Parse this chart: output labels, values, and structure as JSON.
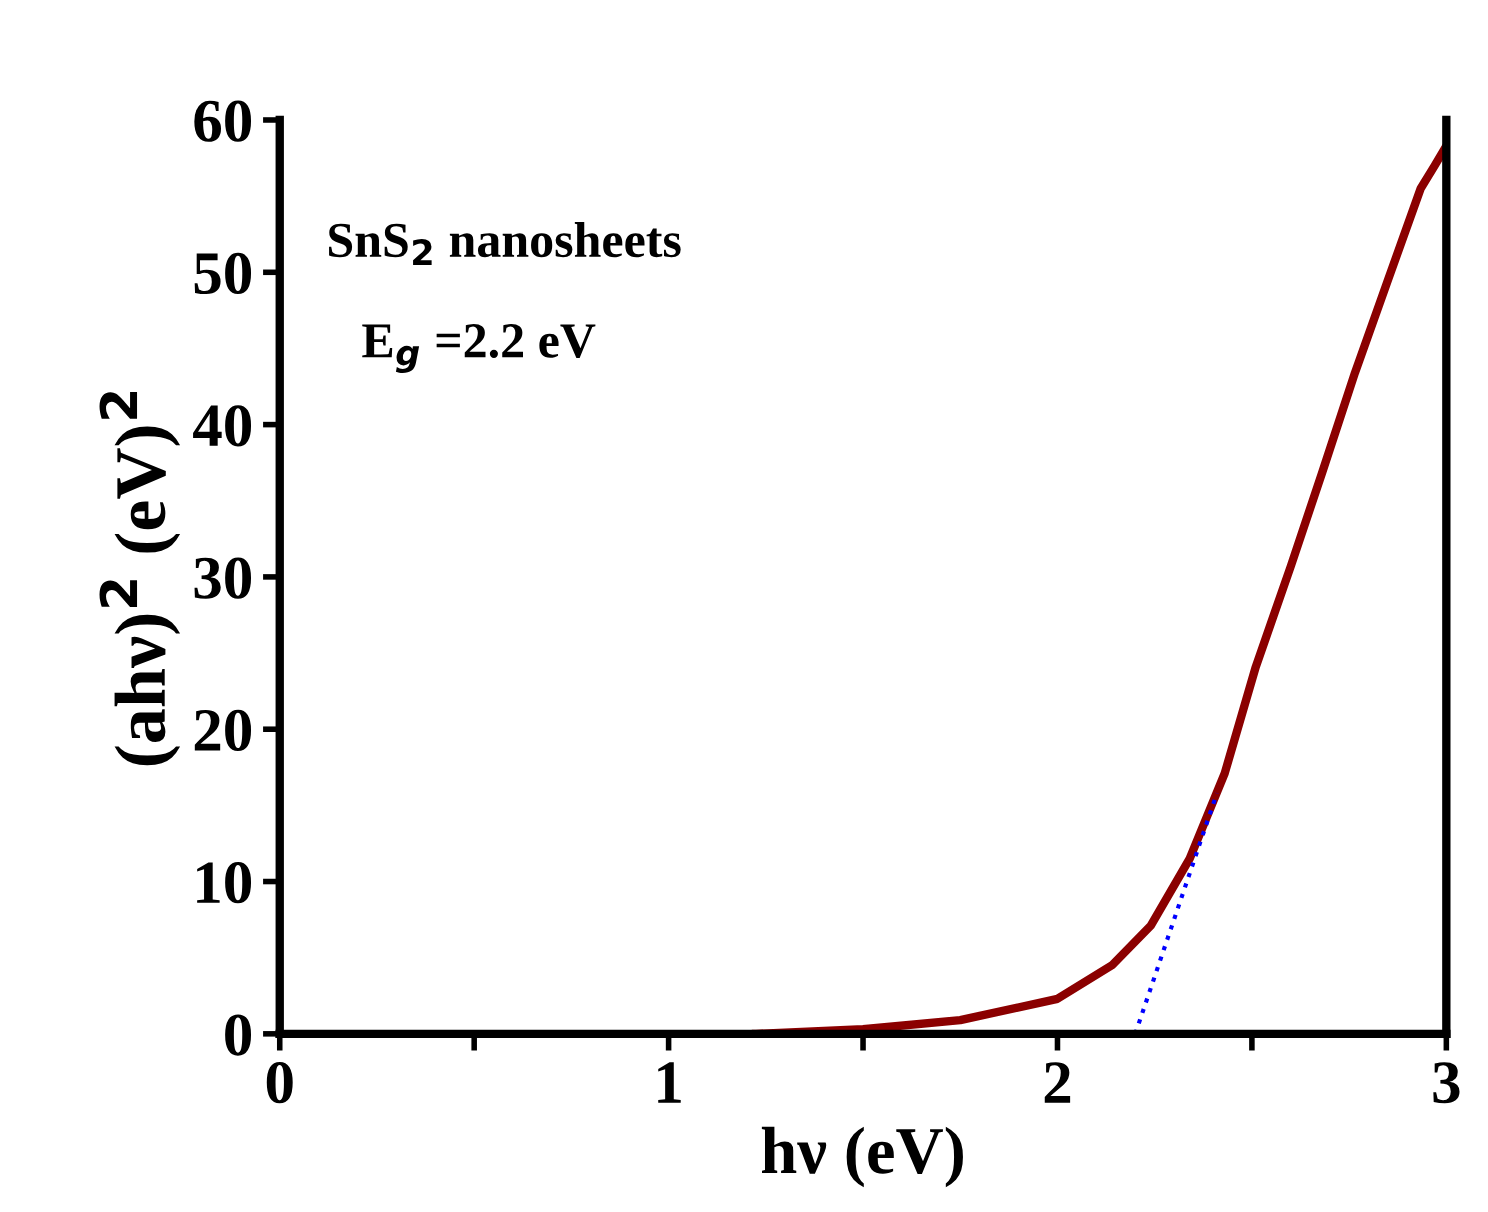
{
  "chart_data": {
    "type": "line",
    "xlabel": "hν (eV)",
    "ylabel": "(ahν)$^{2}$ (eV)$^{2}$",
    "annotations": [
      "SnS$_{2}$ nanosheets",
      "E$_{g}$ =2.2 eV"
    ],
    "xlim": [
      0,
      3
    ],
    "ylim": [
      0,
      60
    ],
    "xticks": [
      0,
      {
        "value": 0.5,
        "label": null
      },
      1,
      {
        "value": 1.5,
        "label": null
      },
      2,
      {
        "value": 2.5,
        "label": null
      },
      3
    ],
    "yticks": [
      0,
      10,
      20,
      30,
      40,
      50,
      60
    ],
    "grid": false,
    "legend": false,
    "series": [
      {
        "color": "#8b0000",
        "x": [
          1.225,
          1.5,
          1.75,
          2.0,
          2.14,
          2.24,
          2.34,
          2.43,
          2.51,
          2.6,
          2.68,
          2.765,
          2.85,
          2.934,
          2.97,
          3.0
        ],
        "values": [
          0,
          0.3,
          0.9,
          2.3,
          4.5,
          7.1,
          11.5,
          17.1,
          24.1,
          30.7,
          36.8,
          43.4,
          49.5,
          55.5,
          57,
          58.3
        ],
        "line_style": "solid"
      },
      {
        "color": "#0000ff",
        "x": [
          2.2,
          2.41
        ],
        "values": [
          0,
          15.8
        ],
        "line_style": "dotted"
      }
    ]
  }
}
